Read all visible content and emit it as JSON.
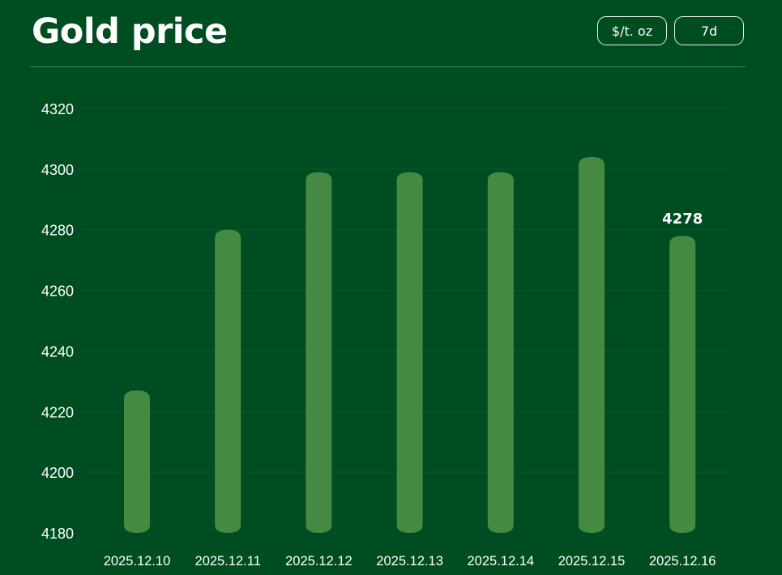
{
  "header": {
    "title": "Gold price",
    "unit_label": "$/t. oz",
    "range_label": "7d"
  },
  "colors": {
    "background": "#004d22",
    "bar": "#448a42",
    "grid": "#0e5a2c"
  },
  "chart_data": {
    "type": "bar",
    "categories": [
      "2025.12.10",
      "2025.12.11",
      "2025.12.12",
      "2025.12.13",
      "2025.12.14",
      "2025.12.15",
      "2025.12.16"
    ],
    "values": [
      4227,
      4280,
      4299,
      4299,
      4299,
      4304,
      4278
    ],
    "ylim": [
      4180,
      4320
    ],
    "yticks": [
      4180,
      4200,
      4220,
      4240,
      4260,
      4280,
      4300,
      4320
    ],
    "data_labels": [
      {
        "index": 6,
        "text": "4278"
      }
    ],
    "grid": true,
    "title": "",
    "xlabel": "",
    "ylabel": ""
  }
}
